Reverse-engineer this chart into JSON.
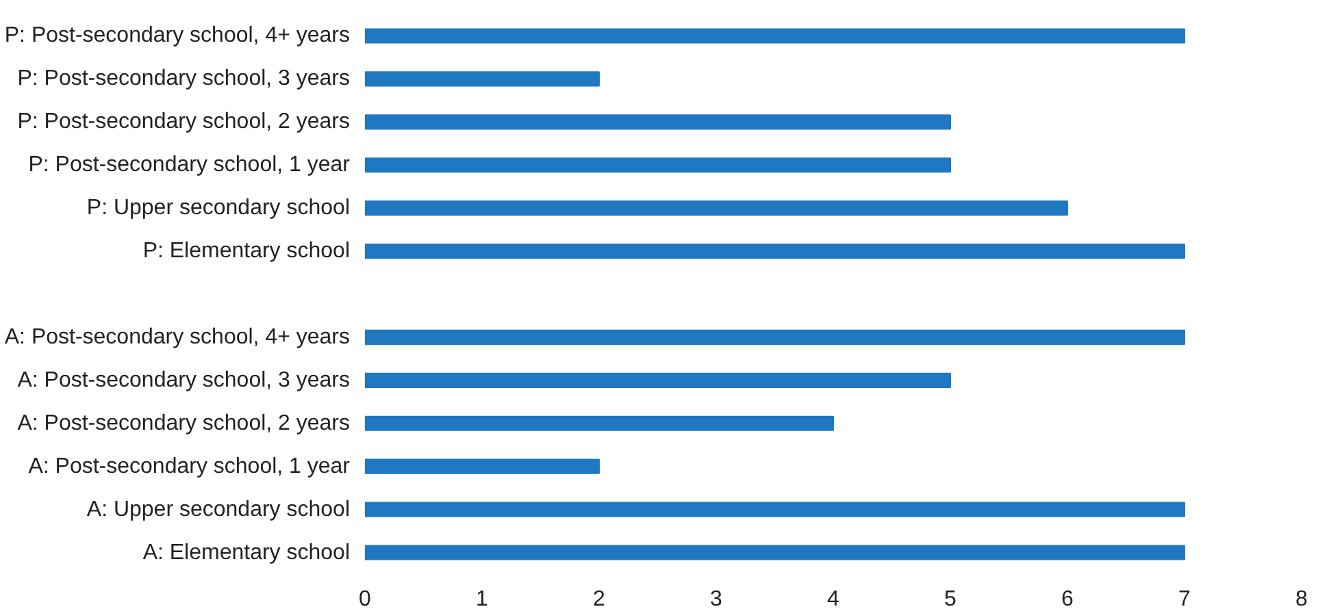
{
  "chart_data": {
    "type": "bar",
    "orientation": "horizontal",
    "categories": [
      "P: Post-secondary school, 4+ years",
      "P: Post-secondary school, 3 years",
      "P: Post-secondary school, 2 years",
      "P: Post-secondary school, 1 year",
      "P: Upper secondary school",
      "P: Elementary school",
      null,
      "A: Post-secondary school, 4+ years",
      "A: Post-secondary school, 3 years",
      "A: Post-secondary school, 2 years",
      "A: Post-secondary school, 1 year",
      "A: Upper secondary school",
      "A: Elementary school"
    ],
    "values": [
      7,
      2,
      5,
      5,
      6,
      7,
      null,
      7,
      5,
      4,
      2,
      7,
      7
    ],
    "color": "#1f78c1",
    "xlim": [
      0,
      8
    ],
    "xticks": [
      0,
      1,
      2,
      3,
      4,
      5,
      6,
      7,
      8
    ],
    "grid": false
  }
}
